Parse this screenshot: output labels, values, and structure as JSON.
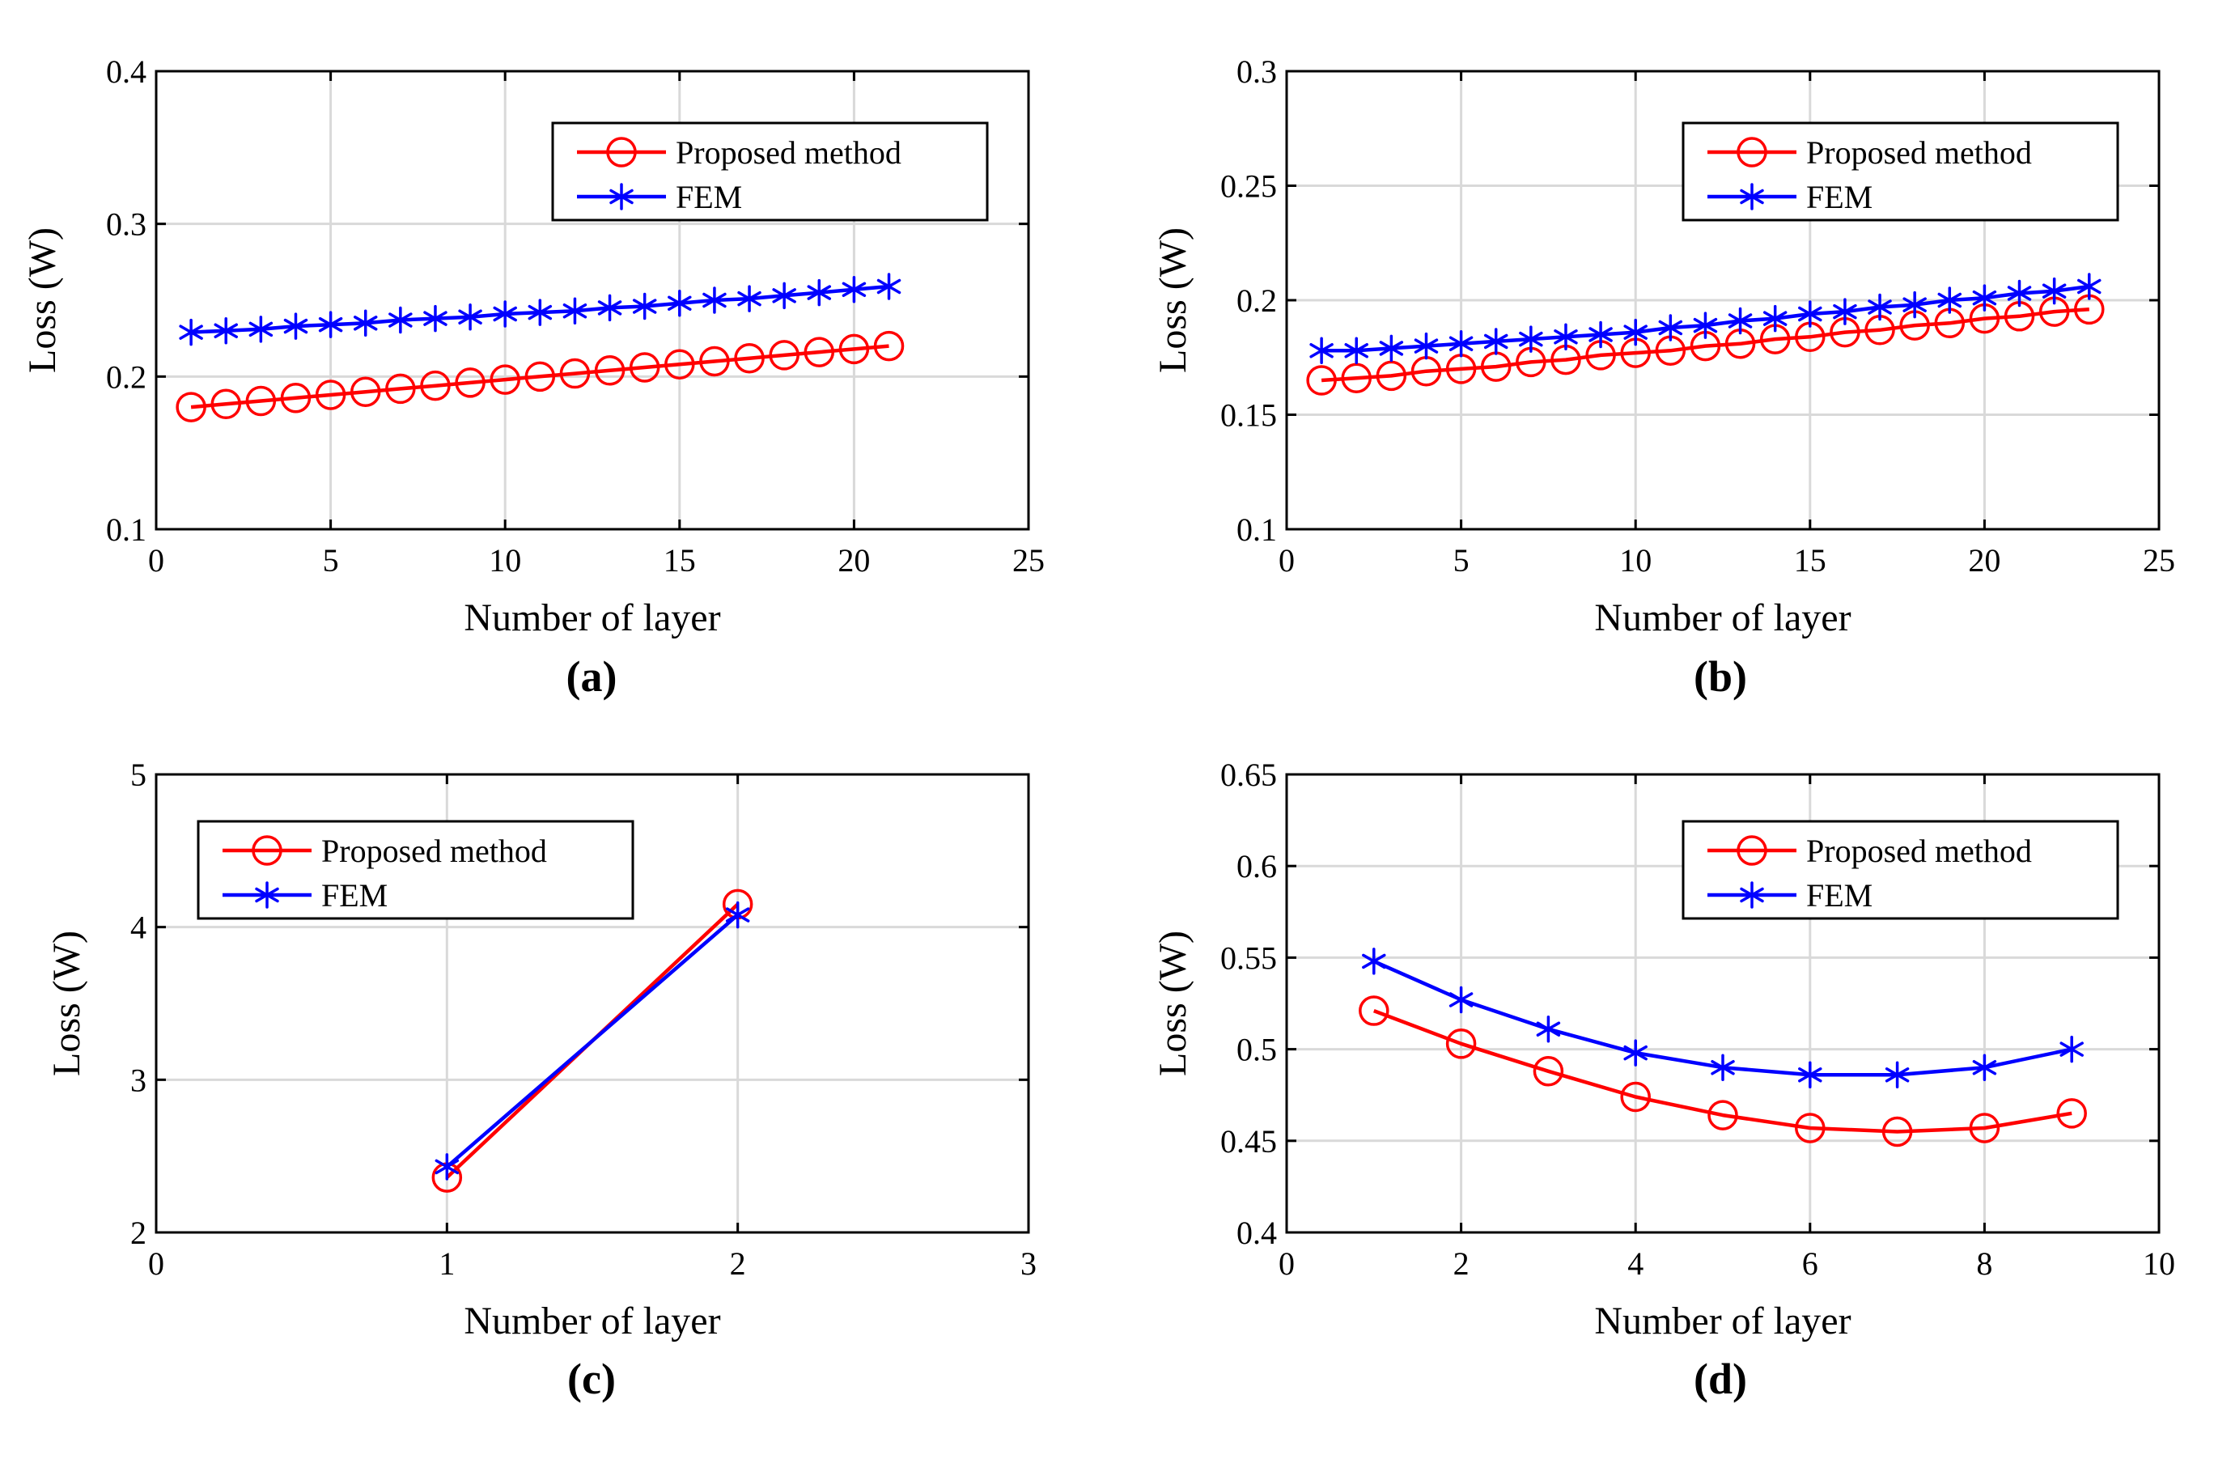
{
  "figure": {
    "captions": [
      "(a)",
      "(b)",
      "(c)",
      "(d)"
    ]
  },
  "colors": {
    "proposed": "#ff0000",
    "fem": "#0000ff",
    "grid": "#d9d9d9",
    "axis": "#000000"
  },
  "chart_data": [
    {
      "type": "line",
      "panel": "(a)",
      "title": "",
      "xlabel": "Number of layer",
      "ylabel": "Loss (W)",
      "xlim": [
        0,
        25
      ],
      "ylim": [
        0.1,
        0.4
      ],
      "xticks": [
        0,
        5,
        10,
        15,
        20,
        25
      ],
      "xtick_labels": [
        "0",
        "5",
        "10",
        "15",
        "20",
        "25"
      ],
      "yticks": [
        0.1,
        0.2,
        0.3,
        0.4
      ],
      "ytick_labels": [
        "0.1",
        "0.2",
        "0.3",
        "0.4"
      ],
      "grid": true,
      "legend_position": "top-right",
      "series": [
        {
          "name": "Proposed method",
          "marker": "circle",
          "x": [
            1,
            2,
            3,
            4,
            5,
            6,
            7,
            8,
            9,
            10,
            11,
            12,
            13,
            14,
            15,
            16,
            17,
            18,
            19,
            20,
            21
          ],
          "y": [
            0.18,
            0.182,
            0.184,
            0.186,
            0.188,
            0.19,
            0.192,
            0.194,
            0.196,
            0.198,
            0.2,
            0.202,
            0.204,
            0.206,
            0.208,
            0.21,
            0.212,
            0.214,
            0.216,
            0.218,
            0.22
          ]
        },
        {
          "name": "FEM",
          "marker": "asterisk",
          "x": [
            1,
            2,
            3,
            4,
            5,
            6,
            7,
            8,
            9,
            10,
            11,
            12,
            13,
            14,
            15,
            16,
            17,
            18,
            19,
            20,
            21
          ],
          "y": [
            0.229,
            0.23,
            0.231,
            0.233,
            0.234,
            0.235,
            0.237,
            0.238,
            0.239,
            0.241,
            0.242,
            0.243,
            0.245,
            0.246,
            0.248,
            0.25,
            0.251,
            0.253,
            0.255,
            0.257,
            0.259
          ]
        }
      ]
    },
    {
      "type": "line",
      "panel": "(b)",
      "title": "",
      "xlabel": "Number of layer",
      "ylabel": "Loss (W)",
      "xlim": [
        0,
        25
      ],
      "ylim": [
        0.1,
        0.3
      ],
      "xticks": [
        0,
        5,
        10,
        15,
        20,
        25
      ],
      "xtick_labels": [
        "0",
        "5",
        "10",
        "15",
        "20",
        "25"
      ],
      "yticks": [
        0.1,
        0.15,
        0.2,
        0.25,
        0.3
      ],
      "ytick_labels": [
        "0.1",
        "0.15",
        "0.2",
        "0.25",
        "0.3"
      ],
      "grid": true,
      "legend_position": "top-right",
      "series": [
        {
          "name": "Proposed method",
          "marker": "circle",
          "x": [
            1,
            2,
            3,
            4,
            5,
            6,
            7,
            8,
            9,
            10,
            11,
            12,
            13,
            14,
            15,
            16,
            17,
            18,
            19,
            20,
            21,
            22,
            23
          ],
          "y": [
            0.165,
            0.166,
            0.167,
            0.169,
            0.17,
            0.171,
            0.173,
            0.174,
            0.176,
            0.177,
            0.178,
            0.18,
            0.181,
            0.183,
            0.184,
            0.186,
            0.187,
            0.189,
            0.19,
            0.192,
            0.193,
            0.195,
            0.196
          ]
        },
        {
          "name": "FEM",
          "marker": "asterisk",
          "x": [
            1,
            2,
            3,
            4,
            5,
            6,
            7,
            8,
            9,
            10,
            11,
            12,
            13,
            14,
            15,
            16,
            17,
            18,
            19,
            20,
            21,
            22,
            23
          ],
          "y": [
            0.178,
            0.178,
            0.179,
            0.18,
            0.181,
            0.182,
            0.183,
            0.184,
            0.185,
            0.186,
            0.188,
            0.189,
            0.191,
            0.192,
            0.194,
            0.195,
            0.197,
            0.198,
            0.2,
            0.201,
            0.203,
            0.204,
            0.206
          ]
        }
      ]
    },
    {
      "type": "line",
      "panel": "(c)",
      "title": "",
      "xlabel": "Number of layer",
      "ylabel": "Loss (W)",
      "xlim": [
        0,
        3
      ],
      "ylim": [
        2,
        5
      ],
      "xticks": [
        0,
        1,
        2,
        3
      ],
      "xtick_labels": [
        "0",
        "1",
        "2",
        "3"
      ],
      "yticks": [
        2,
        3,
        4,
        5
      ],
      "ytick_labels": [
        "2",
        "3",
        "4",
        "5"
      ],
      "grid": true,
      "legend_position": "top-left",
      "series": [
        {
          "name": "Proposed method",
          "marker": "circle",
          "x": [
            1,
            2
          ],
          "y": [
            2.36,
            4.15
          ]
        },
        {
          "name": "FEM",
          "marker": "asterisk",
          "x": [
            1,
            2
          ],
          "y": [
            2.43,
            4.08
          ]
        }
      ]
    },
    {
      "type": "line",
      "panel": "(d)",
      "title": "",
      "xlabel": "Number of layer",
      "ylabel": "Loss (W)",
      "xlim": [
        0,
        10
      ],
      "ylim": [
        0.4,
        0.65
      ],
      "xticks": [
        0,
        2,
        4,
        6,
        8,
        10
      ],
      "xtick_labels": [
        "0",
        "2",
        "4",
        "6",
        "8",
        "10"
      ],
      "yticks": [
        0.4,
        0.45,
        0.5,
        0.55,
        0.6,
        0.65
      ],
      "ytick_labels": [
        "0.4",
        "0.45",
        "0.5",
        "0.55",
        "0.6",
        "0.65"
      ],
      "grid": true,
      "legend_position": "top-right",
      "series": [
        {
          "name": "Proposed method",
          "marker": "circle",
          "x": [
            1,
            2,
            3,
            4,
            5,
            6,
            7,
            8,
            9
          ],
          "y": [
            0.521,
            0.503,
            0.488,
            0.474,
            0.464,
            0.457,
            0.455,
            0.457,
            0.465
          ]
        },
        {
          "name": "FEM",
          "marker": "asterisk",
          "x": [
            1,
            2,
            3,
            4,
            5,
            6,
            7,
            8,
            9
          ],
          "y": [
            0.548,
            0.527,
            0.511,
            0.498,
            0.49,
            0.486,
            0.486,
            0.49,
            0.5
          ]
        }
      ]
    }
  ]
}
